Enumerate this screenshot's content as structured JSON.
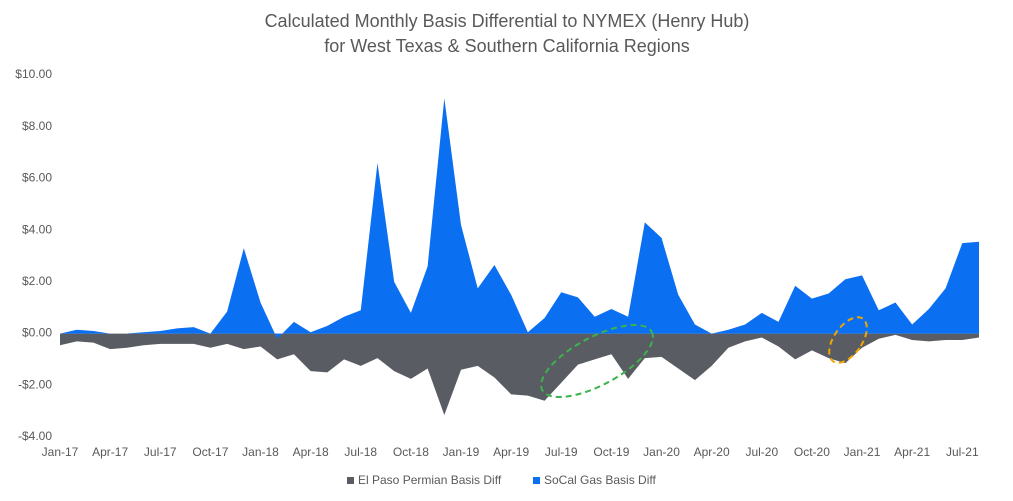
{
  "chart_data": {
    "type": "area",
    "title": "Calculated Monthly Basis Differential to NYMEX (Henry Hub)",
    "subtitle": "for West Texas & Southern California Regions",
    "categories": [
      "Jan-17",
      null,
      null,
      "Apr-17",
      null,
      null,
      "Jul-17",
      null,
      null,
      "Oct-17",
      null,
      null,
      "Jan-18",
      null,
      null,
      "Apr-18",
      null,
      null,
      "Jul-18",
      null,
      null,
      "Oct-18",
      null,
      null,
      "Jan-19",
      null,
      null,
      "Apr-19",
      null,
      null,
      "Jul-19",
      null,
      null,
      "Oct-19",
      null,
      null,
      "Jan-20",
      null,
      null,
      "Apr-20",
      null,
      null,
      "Jul-20",
      null,
      null,
      "Oct-20",
      null,
      null,
      "Jan-21",
      null,
      null,
      "Apr-21",
      null,
      null,
      "Jul-21",
      null
    ],
    "series": [
      {
        "name": "El Paso Permian Basis Diff",
        "color": "#5a5c64",
        "values": [
          -0.45,
          -0.3,
          -0.35,
          -0.6,
          -0.55,
          -0.45,
          -0.4,
          -0.4,
          -0.4,
          -0.55,
          -0.4,
          -0.6,
          -0.5,
          -1.0,
          -0.8,
          -1.45,
          -1.5,
          -1.0,
          -1.25,
          -0.95,
          -1.45,
          -1.75,
          -1.35,
          -3.15,
          -1.4,
          -1.25,
          -1.7,
          -2.35,
          -2.4,
          -2.6,
          -1.9,
          -1.2,
          -1.0,
          -0.8,
          -1.75,
          -0.95,
          -0.9,
          -1.35,
          -1.8,
          -1.25,
          -0.55,
          -0.3,
          -0.15,
          -0.5,
          -1.0,
          -0.65,
          -0.95,
          -1.15,
          -0.55,
          -0.2,
          -0.05,
          -0.25,
          -0.3,
          -0.25,
          -0.25,
          -0.15
        ]
      },
      {
        "name": "SoCal Gas Basis Diff",
        "color": "#0b6ff2",
        "values": [
          0.0,
          0.15,
          0.1,
          0.0,
          0.0,
          0.05,
          0.1,
          0.2,
          0.25,
          0.0,
          0.85,
          3.3,
          1.2,
          -0.2,
          0.45,
          0.05,
          0.3,
          0.65,
          0.9,
          6.6,
          2.0,
          0.8,
          2.6,
          9.1,
          4.2,
          1.75,
          2.65,
          1.5,
          0.05,
          0.6,
          1.6,
          1.4,
          0.65,
          0.95,
          0.65,
          4.3,
          3.7,
          1.5,
          0.35,
          0.0,
          0.15,
          0.35,
          0.8,
          0.45,
          1.85,
          1.35,
          1.55,
          2.1,
          2.25,
          0.9,
          1.2,
          0.35,
          0.95,
          1.75,
          3.5,
          3.55
        ]
      }
    ],
    "ylim": [
      -4,
      10
    ],
    "yticks": [
      {
        "value": -4,
        "label": "-$4.00"
      },
      {
        "value": -2,
        "label": "-$2.00"
      },
      {
        "value": 0,
        "label": "$0.00"
      },
      {
        "value": 2,
        "label": "$2.00"
      },
      {
        "value": 4,
        "label": "$4.00"
      },
      {
        "value": 6,
        "label": "$6.00"
      },
      {
        "value": 8,
        "label": "$8.00"
      },
      {
        "value": 10,
        "label": "$10.00"
      }
    ],
    "grid": false,
    "legend": "bottom"
  }
}
